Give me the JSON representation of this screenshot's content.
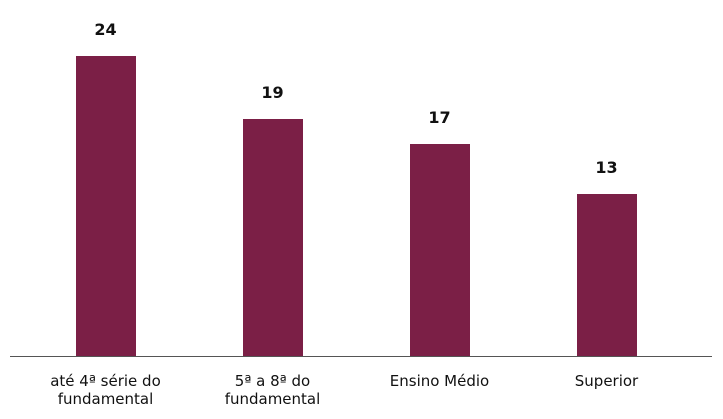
{
  "chart_data": {
    "type": "bar",
    "categories": [
      "até 4ª série do fundamental",
      "5ª a 8ª do fundamental",
      "Ensino Médio",
      "Superior"
    ],
    "values": [
      24,
      19,
      17,
      13
    ],
    "color": "#7b1f46"
  }
}
